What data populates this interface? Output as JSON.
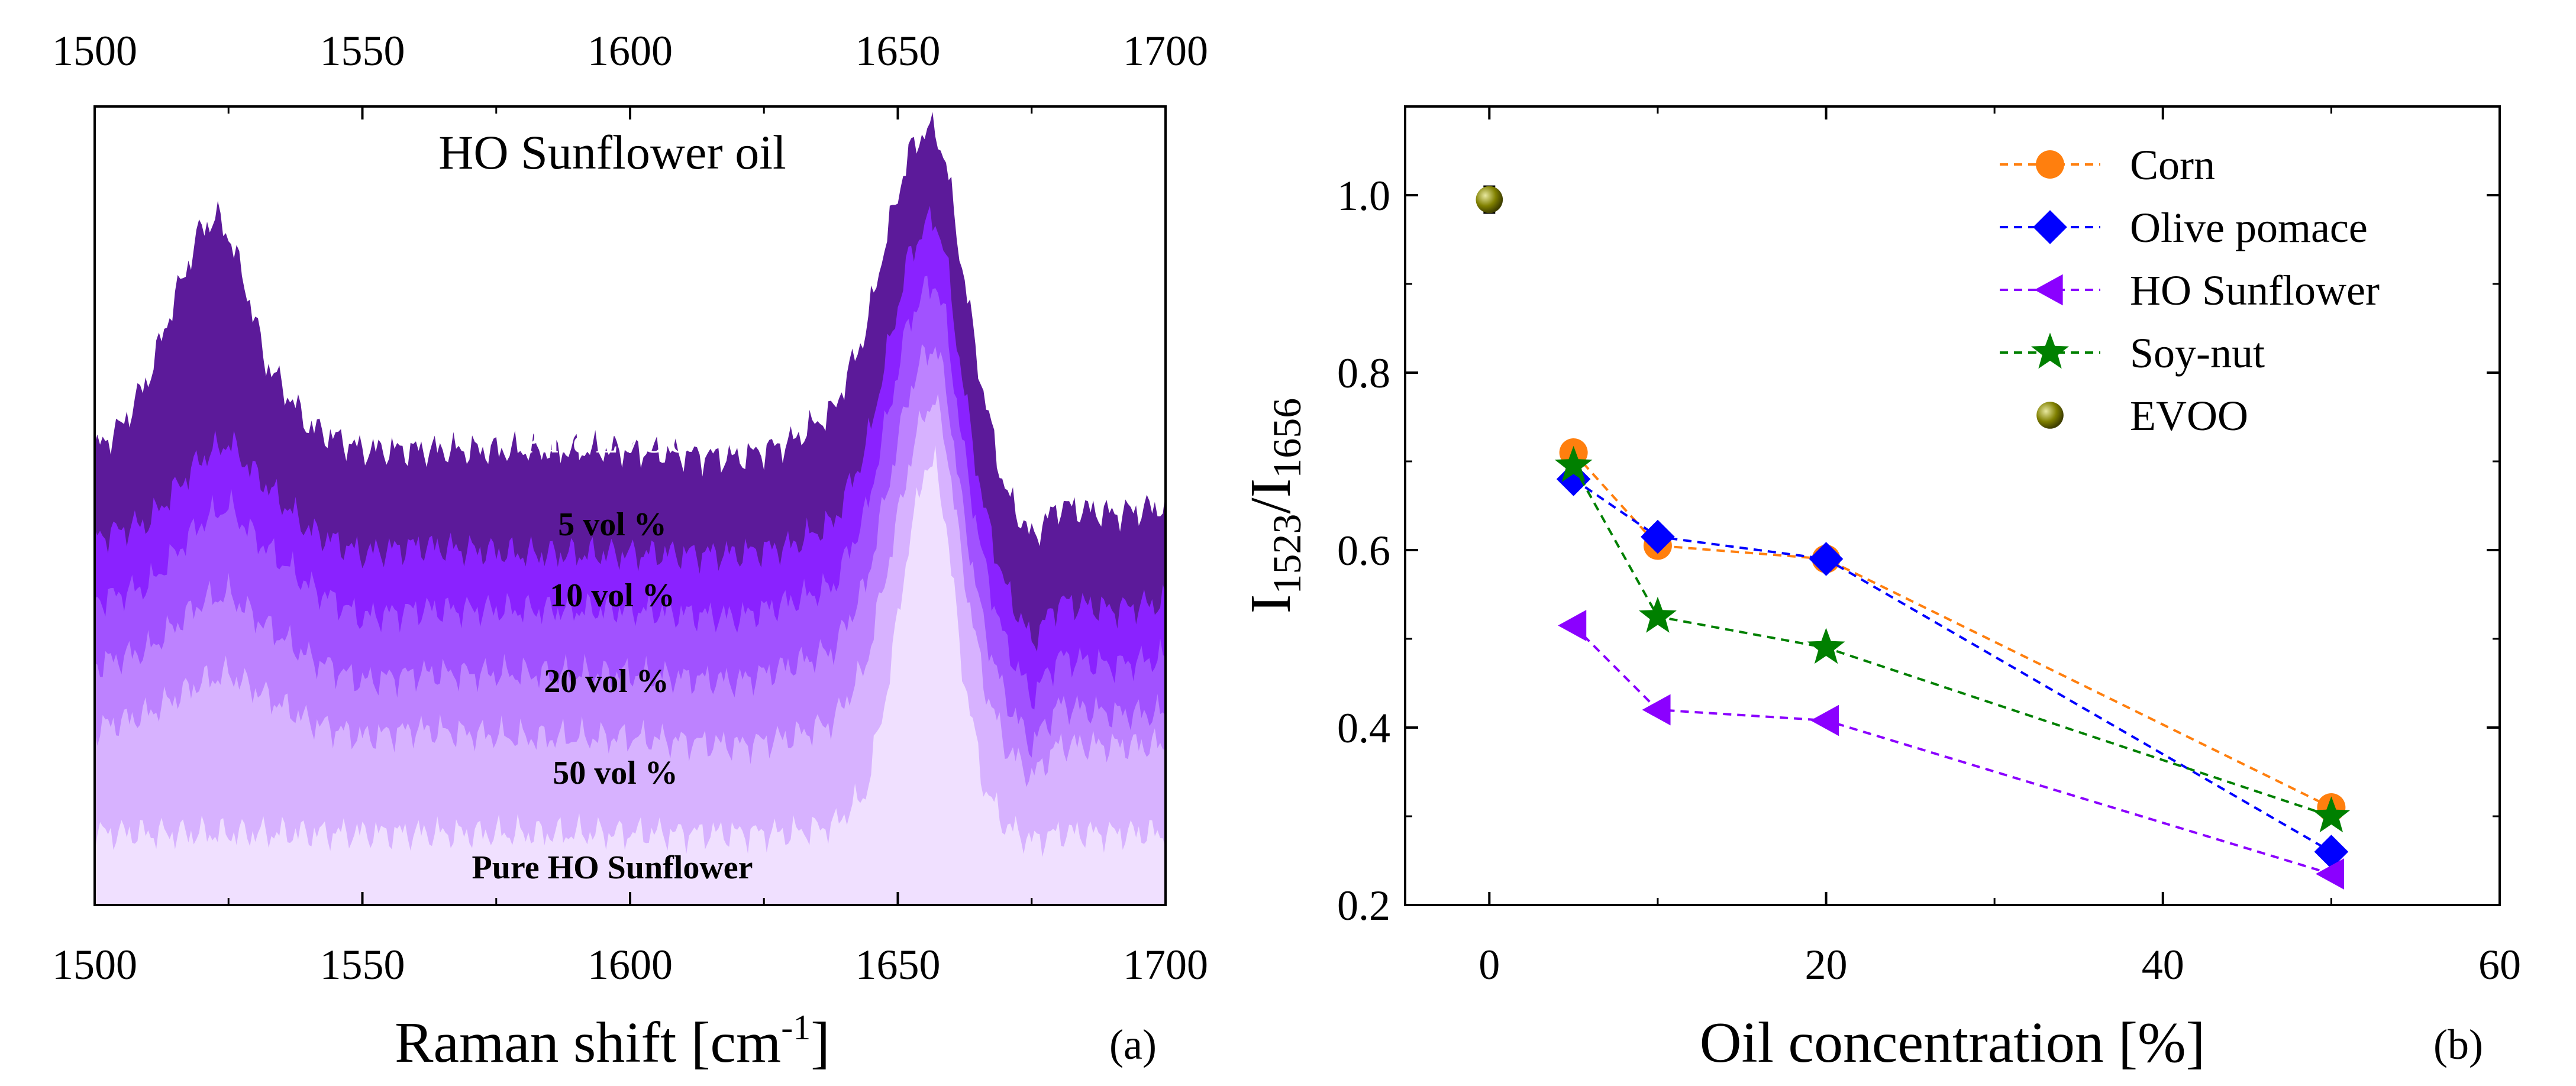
{
  "panel_a": {
    "title": "HO Sunflower oil",
    "xlabel_main": "Raman shift [cm",
    "xlabel_sup": "-1",
    "xlabel_tail": "]",
    "tag": "(a)",
    "colors": [
      "#f0e0ff",
      "#d7b2ff",
      "#bd82ff",
      "#a152ff",
      "#8a22ff",
      "#5c1a9a"
    ]
  },
  "panel_b": {
    "ylabel_main": "I",
    "ylabel_sub1": "1523",
    "ylabel_mid": "/I",
    "ylabel_sub2": "1656",
    "xlabel": "Oil concentration [%]",
    "tag": "(b)"
  },
  "chart_data": [
    {
      "type": "area",
      "title": "HO Sunflower oil",
      "xlabel": "Raman shift [cm-1]",
      "xlim": [
        1500,
        1700
      ],
      "xticks": [
        1500,
        1550,
        1600,
        1650,
        1700
      ],
      "series": [
        {
          "name": "Pure HO Sunflower",
          "color": "#f0e0ff",
          "x": [
            1500,
            1520,
            1540,
            1560,
            1580,
            1600,
            1620,
            1630,
            1638,
            1644,
            1648,
            1652,
            1655,
            1657,
            1659,
            1662,
            1666,
            1670,
            1675,
            1680,
            1690,
            1700
          ],
          "y": [
            0.09,
            0.09,
            0.09,
            0.09,
            0.09,
            0.09,
            0.09,
            0.09,
            0.1,
            0.14,
            0.27,
            0.45,
            0.55,
            0.55,
            0.48,
            0.3,
            0.15,
            0.1,
            0.08,
            0.09,
            0.09,
            0.09
          ]
        },
        {
          "name": "50 vol %",
          "color": "#d7b2ff",
          "x": [
            1500,
            1510,
            1520,
            1525,
            1530,
            1540,
            1550,
            1560,
            1580,
            1600,
            1620,
            1630,
            1638,
            1644,
            1648,
            1652,
            1655,
            1657,
            1659,
            1662,
            1666,
            1670,
            1675,
            1680,
            1690,
            1700
          ],
          "y": [
            0.22,
            0.24,
            0.28,
            0.29,
            0.27,
            0.23,
            0.21,
            0.22,
            0.21,
            0.21,
            0.2,
            0.21,
            0.23,
            0.3,
            0.42,
            0.55,
            0.62,
            0.63,
            0.58,
            0.43,
            0.28,
            0.2,
            0.16,
            0.2,
            0.2,
            0.2
          ]
        },
        {
          "name": "20 vol %",
          "color": "#bd82ff",
          "x": [
            1500,
            1510,
            1520,
            1525,
            1530,
            1540,
            1550,
            1560,
            1580,
            1600,
            1620,
            1630,
            1638,
            1644,
            1648,
            1652,
            1655,
            1657,
            1659,
            1662,
            1666,
            1670,
            1675,
            1680,
            1690,
            1700
          ],
          "y": [
            0.3,
            0.32,
            0.38,
            0.39,
            0.36,
            0.31,
            0.28,
            0.29,
            0.29,
            0.29,
            0.28,
            0.3,
            0.32,
            0.4,
            0.52,
            0.64,
            0.69,
            0.7,
            0.65,
            0.5,
            0.35,
            0.26,
            0.2,
            0.25,
            0.24,
            0.24
          ]
        },
        {
          "name": "10 vol %",
          "color": "#a152ff",
          "x": [
            1500,
            1510,
            1520,
            1525,
            1530,
            1540,
            1550,
            1560,
            1580,
            1600,
            1620,
            1630,
            1638,
            1644,
            1648,
            1652,
            1655,
            1657,
            1659,
            1662,
            1666,
            1670,
            1675,
            1680,
            1690,
            1700
          ],
          "y": [
            0.38,
            0.4,
            0.48,
            0.5,
            0.46,
            0.4,
            0.36,
            0.37,
            0.37,
            0.37,
            0.36,
            0.38,
            0.4,
            0.49,
            0.61,
            0.73,
            0.77,
            0.78,
            0.73,
            0.58,
            0.43,
            0.33,
            0.26,
            0.31,
            0.3,
            0.31
          ]
        },
        {
          "name": "5 vol %",
          "color": "#8a22ff",
          "x": [
            1500,
            1510,
            1520,
            1525,
            1530,
            1540,
            1550,
            1560,
            1580,
            1600,
            1620,
            1630,
            1638,
            1644,
            1648,
            1652,
            1655,
            1657,
            1659,
            1662,
            1666,
            1670,
            1675,
            1680,
            1690,
            1700
          ],
          "y": [
            0.46,
            0.48,
            0.56,
            0.58,
            0.54,
            0.47,
            0.44,
            0.45,
            0.44,
            0.44,
            0.44,
            0.45,
            0.48,
            0.57,
            0.69,
            0.81,
            0.85,
            0.86,
            0.81,
            0.66,
            0.5,
            0.4,
            0.33,
            0.38,
            0.37,
            0.38
          ]
        },
        {
          "name": "Pure EVOO",
          "color": "#5c1a9a",
          "x": [
            1500,
            1505,
            1510,
            1515,
            1520,
            1523,
            1525,
            1528,
            1532,
            1540,
            1550,
            1560,
            1580,
            1600,
            1620,
            1630,
            1638,
            1644,
            1648,
            1652,
            1655,
            1657,
            1659,
            1662,
            1666,
            1670,
            1675,
            1680,
            1690,
            1700
          ],
          "y": [
            0.57,
            0.6,
            0.66,
            0.76,
            0.85,
            0.86,
            0.84,
            0.78,
            0.68,
            0.6,
            0.57,
            0.57,
            0.57,
            0.57,
            0.56,
            0.58,
            0.62,
            0.72,
            0.84,
            0.94,
            0.97,
            0.97,
            0.93,
            0.8,
            0.64,
            0.52,
            0.46,
            0.5,
            0.49,
            0.5
          ]
        }
      ],
      "band_labels": [
        "Pure EVOO",
        "5 vol  %",
        "10 vol  %",
        "20 vol  %",
        "50 vol  %",
        "Pure HO Sunflower"
      ]
    },
    {
      "type": "scatter",
      "xlabel": "Oil concentration [%]",
      "ylabel": "I1523/I1656",
      "xlim": [
        -5,
        60
      ],
      "ylim": [
        0.2,
        1.1
      ],
      "xticks": [
        0,
        20,
        40,
        60
      ],
      "yticks": [
        0.2,
        0.4,
        0.6,
        0.8,
        1.0
      ],
      "ytick_labels": [
        "0.2",
        "0.4",
        "0.6",
        "0.8",
        "1.0"
      ],
      "legend_position": "top-right",
      "series": [
        {
          "name": "Corn",
          "color": "#ff7f0e",
          "marker": "circle",
          "x": [
            5,
            10,
            20,
            50
          ],
          "y": [
            0.71,
            0.605,
            0.59,
            0.31
          ]
        },
        {
          "name": "Olive pomace",
          "color": "#0000ff",
          "marker": "diamond",
          "x": [
            5,
            10,
            20,
            50
          ],
          "y": [
            0.68,
            0.615,
            0.59,
            0.26
          ]
        },
        {
          "name": "HO Sunflower",
          "color": "#8b00ff",
          "marker": "triangle-left",
          "x": [
            5,
            10,
            20,
            50
          ],
          "y": [
            0.515,
            0.42,
            0.408,
            0.235
          ]
        },
        {
          "name": "Soy-nut",
          "color": "#008000",
          "marker": "star",
          "x": [
            5,
            10,
            20,
            50
          ],
          "y": [
            0.695,
            0.525,
            0.49,
            0.3
          ]
        },
        {
          "name": "EVOO",
          "color": "#808000",
          "marker": "ball",
          "x": [
            0
          ],
          "y": [
            0.995
          ],
          "error": [
            0.015
          ]
        }
      ]
    }
  ]
}
